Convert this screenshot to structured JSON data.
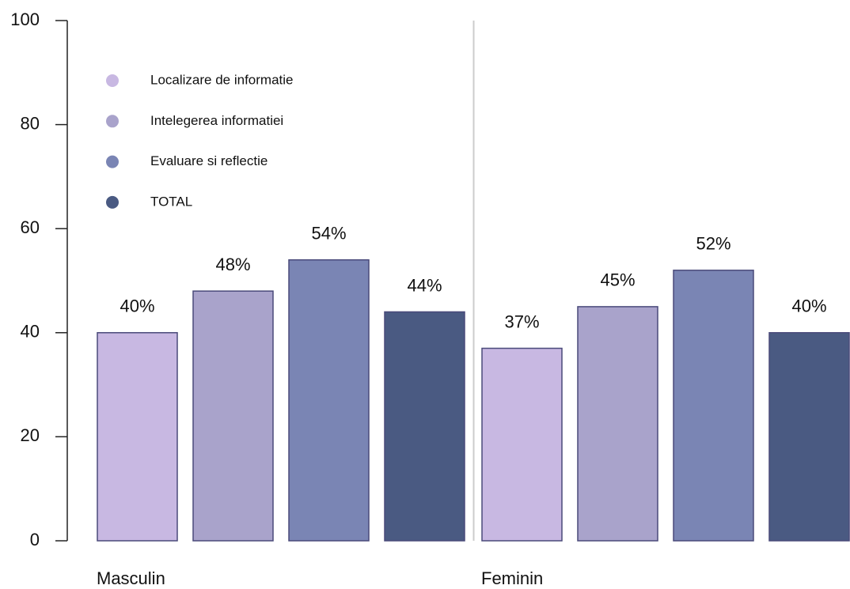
{
  "chart_data": {
    "type": "bar",
    "categories": [
      "Masculin",
      "Feminin"
    ],
    "series": [
      {
        "name": "Localizare de informatie",
        "color": "#c8b8e2",
        "values": [
          40,
          37
        ],
        "value_labels": [
          "40%",
          "37%"
        ]
      },
      {
        "name": "Intelegerea informatiei",
        "color": "#a9a3cb",
        "values": [
          48,
          45
        ],
        "value_labels": [
          "48%",
          "45%"
        ]
      },
      {
        "name": "Evaluare si reflectie",
        "color": "#7a85b4",
        "values": [
          54,
          52
        ],
        "value_labels": [
          "54%",
          "52%"
        ]
      },
      {
        "name": "TOTAL",
        "color": "#4a5a82",
        "values": [
          44,
          40
        ],
        "value_labels": [
          "44%",
          "40%"
        ]
      }
    ],
    "ylim": [
      0,
      100
    ],
    "yticks": [
      0,
      20,
      40,
      60,
      80,
      100
    ],
    "legend": "upper left"
  }
}
